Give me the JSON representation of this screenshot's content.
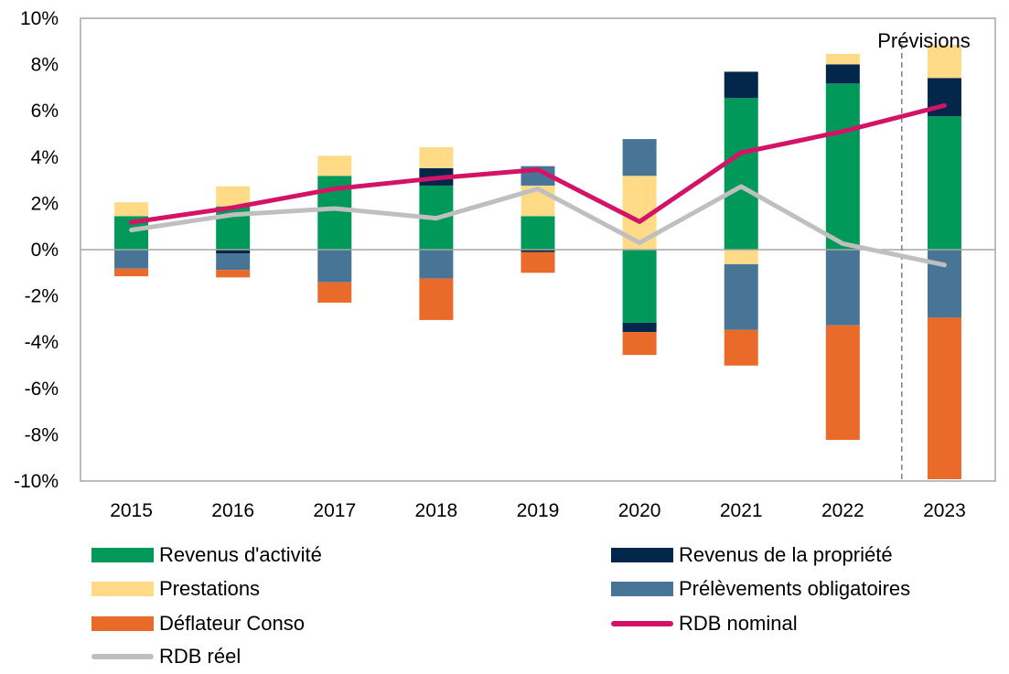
{
  "chart_data": {
    "type": "bar",
    "stacked": true,
    "categories": [
      "2015",
      "2016",
      "2017",
      "2018",
      "2019",
      "2020",
      "2021",
      "2022",
      "2023"
    ],
    "ylim": [
      -10,
      10
    ],
    "yticks": [
      "-10%",
      "-8%",
      "-6%",
      "-4%",
      "-2%",
      "0%",
      "2%",
      "4%",
      "6%",
      "8%",
      "10%"
    ],
    "grid": false,
    "legend_position": "bottom",
    "annotation": "Prévisions",
    "series": [
      {
        "name": "Revenus d'activité",
        "kind": "bar",
        "color": "#009959",
        "values": [
          1.45,
          1.87,
          3.19,
          2.77,
          1.45,
          -3.16,
          6.55,
          7.18,
          5.76
        ]
      },
      {
        "name": "Revenus de la propriété",
        "kind": "bar",
        "color": "#03274A",
        "values": [
          0,
          -0.17,
          0,
          0.75,
          -0.1,
          -0.4,
          1.14,
          0.83,
          1.66
        ]
      },
      {
        "name": "Prestations",
        "kind": "bar",
        "color": "#FFDB87",
        "values": [
          0.6,
          0.87,
          0.87,
          0.91,
          1.32,
          3.19,
          -0.63,
          0.45,
          1.43
        ]
      },
      {
        "name": "Prélèvements obligatoires",
        "kind": "bar",
        "color": "#487596",
        "values": [
          -0.82,
          -0.71,
          -1.41,
          -1.25,
          0.84,
          1.59,
          -2.84,
          -3.27,
          -2.94
        ]
      },
      {
        "name": "Déflateur Conso",
        "kind": "bar",
        "color": "#EA6A2A",
        "values": [
          -0.33,
          -0.32,
          -0.88,
          -1.79,
          -0.9,
          -0.99,
          -1.54,
          -4.95,
          -6.98
        ]
      },
      {
        "name": "RDB nominal",
        "kind": "line",
        "color": "#D31466",
        "values": [
          1.18,
          1.82,
          2.63,
          3.09,
          3.46,
          1.21,
          4.19,
          5.11,
          6.23
        ]
      },
      {
        "name": "RDB réel",
        "kind": "line",
        "color": "#BFBFBF",
        "values": [
          0.85,
          1.51,
          1.78,
          1.36,
          2.63,
          0.3,
          2.73,
          0.26,
          -0.66
        ]
      }
    ]
  }
}
